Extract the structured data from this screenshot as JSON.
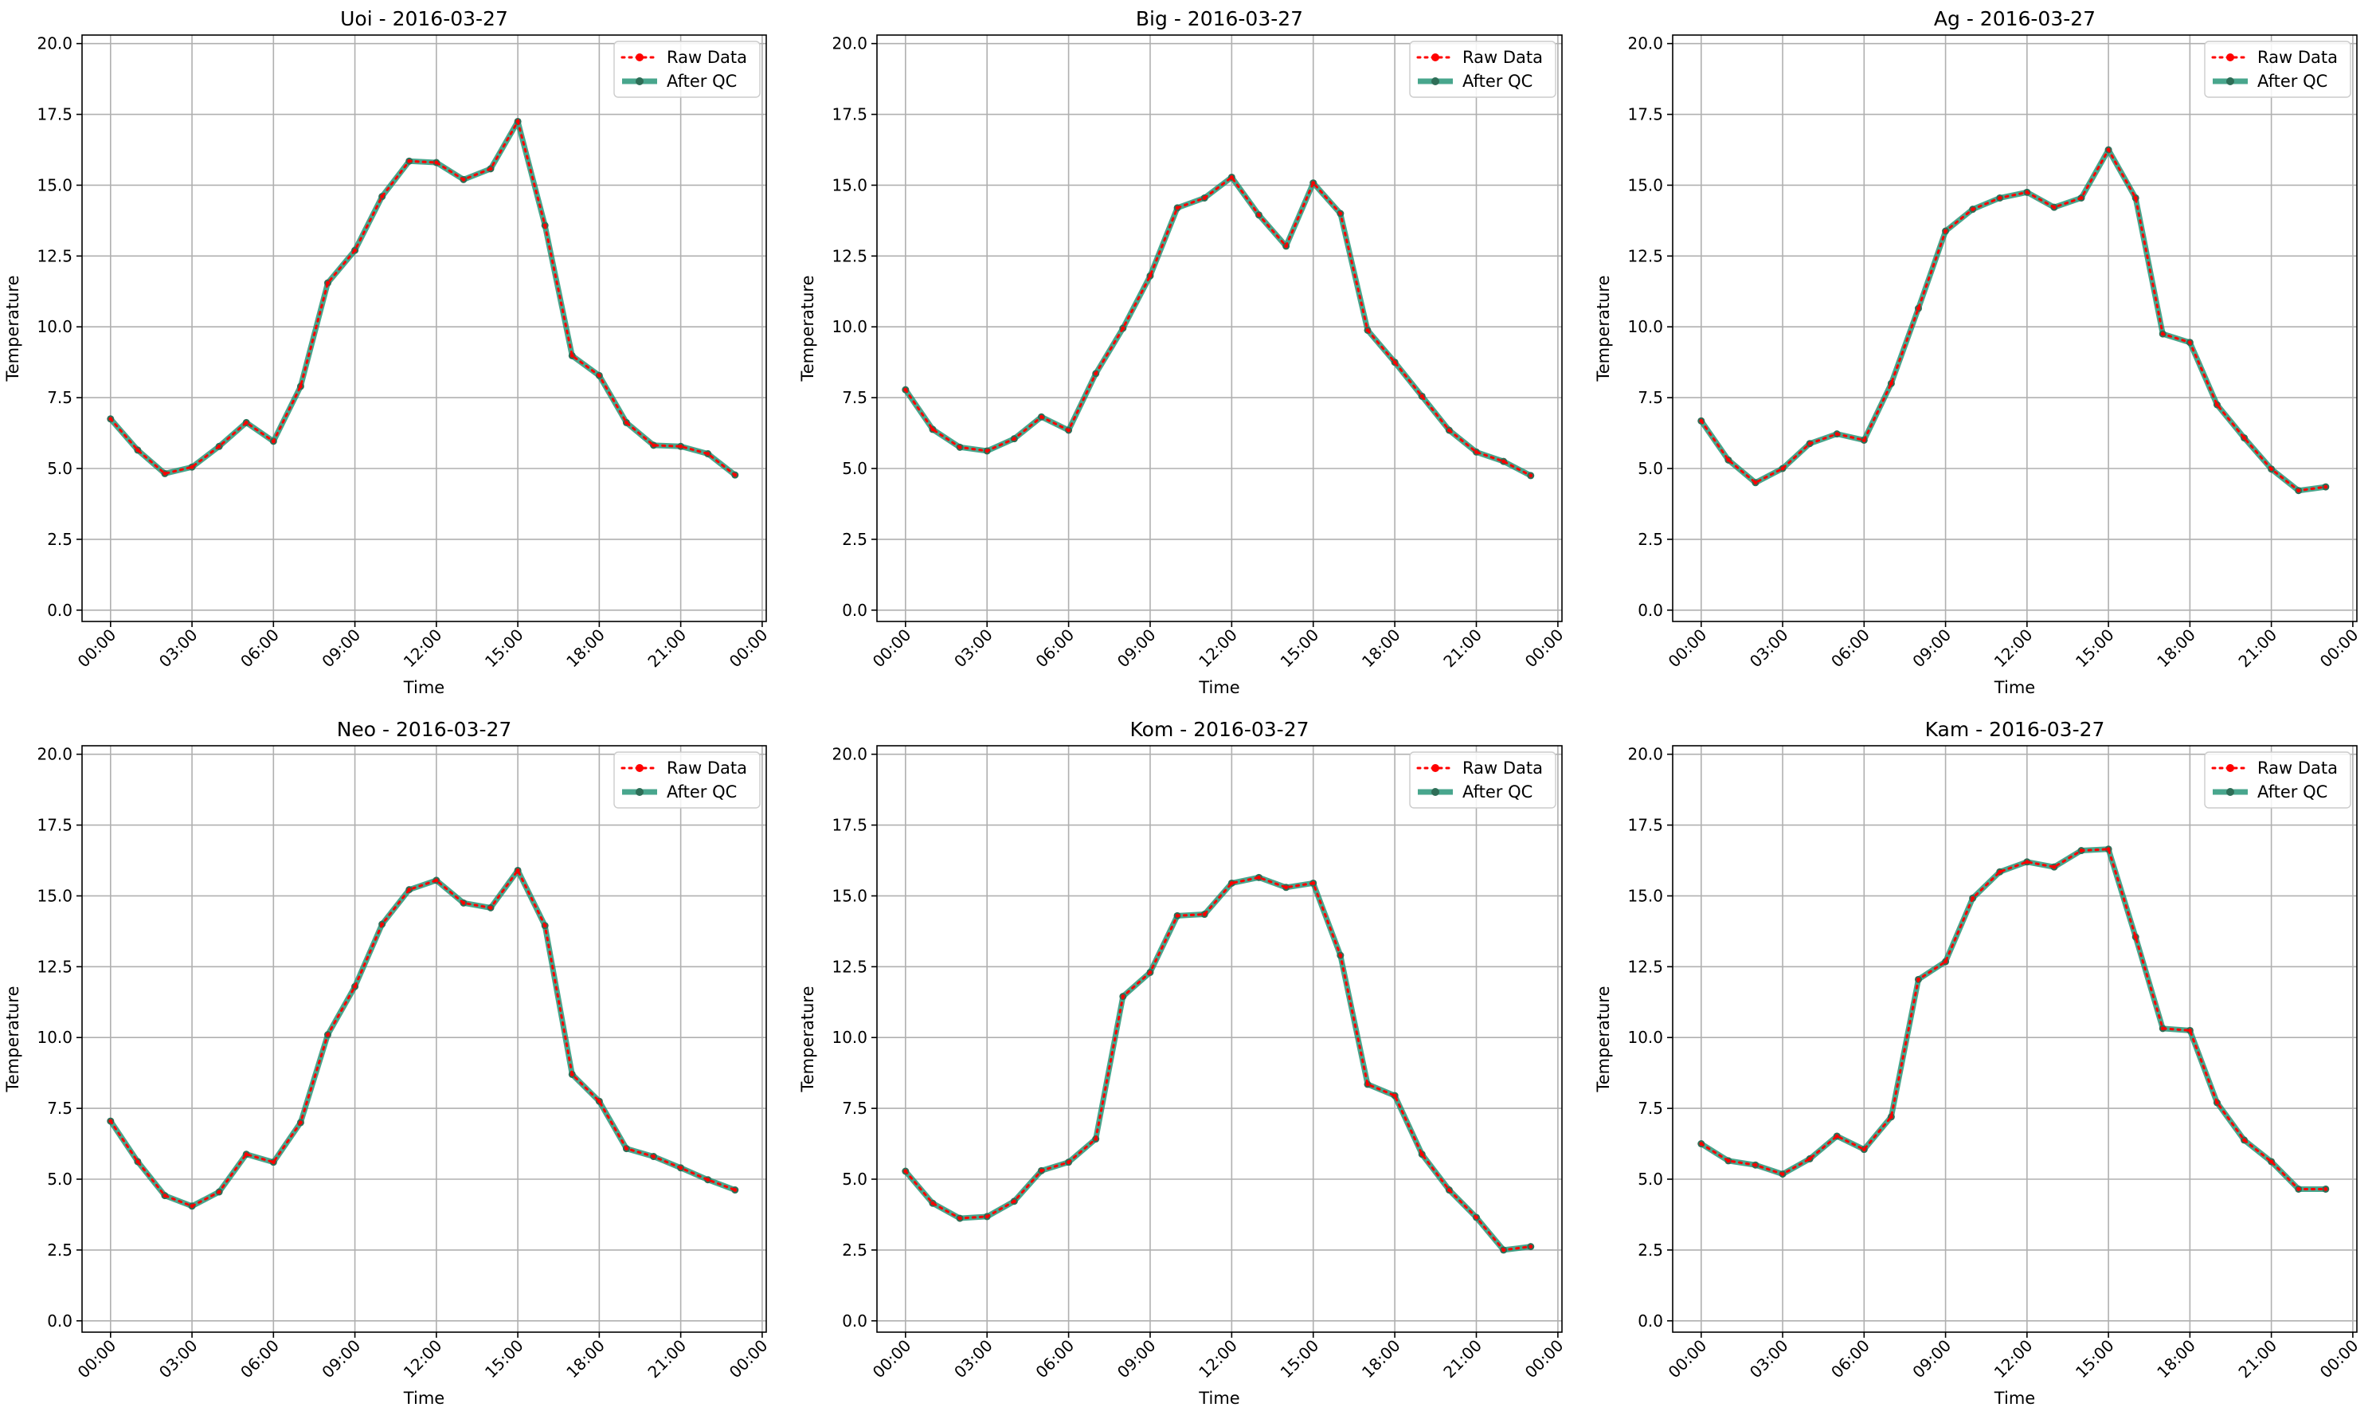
{
  "colors": {
    "raw": "#ff0000",
    "qc": "#1a9070",
    "grid": "#b0b0b0"
  },
  "legend": {
    "raw_label": "Raw Data",
    "qc_label": "After QC",
    "placement": "upper right"
  },
  "chart_data": [
    {
      "type": "line",
      "title": "Uoi - 2016-03-27",
      "xlabel": "Time",
      "ylabel": "Temperature",
      "ylim": [
        -0.4,
        20.3
      ],
      "yticks": [
        "0.0",
        "2.5",
        "5.0",
        "7.5",
        "10.0",
        "12.5",
        "15.0",
        "17.5",
        "20.0"
      ],
      "xticks": [
        "00:00",
        "03:00",
        "06:00",
        "09:00",
        "12:00",
        "15:00",
        "18:00",
        "21:00",
        "00:00"
      ],
      "x": [
        "00:00",
        "01:00",
        "02:00",
        "03:00",
        "04:00",
        "05:00",
        "06:00",
        "07:00",
        "08:00",
        "09:00",
        "10:00",
        "11:00",
        "12:00",
        "13:00",
        "14:00",
        "15:00",
        "16:00",
        "17:00",
        "18:00",
        "19:00",
        "20:00",
        "21:00",
        "22:00",
        "23:00"
      ],
      "series": [
        {
          "name": "Raw Data",
          "values": [
            6.75,
            5.65,
            4.82,
            5.05,
            5.78,
            6.62,
            5.96,
            7.9,
            11.55,
            12.7,
            14.6,
            15.85,
            15.8,
            15.2,
            15.58,
            17.25,
            13.58,
            8.98,
            8.28,
            6.62,
            5.82,
            5.78,
            5.52,
            4.77
          ]
        },
        {
          "name": "After QC",
          "values": [
            6.75,
            5.65,
            4.82,
            5.05,
            5.78,
            6.62,
            5.96,
            7.9,
            11.55,
            12.7,
            14.6,
            15.85,
            15.8,
            15.2,
            15.58,
            17.25,
            13.58,
            8.98,
            8.28,
            6.62,
            5.82,
            5.78,
            5.52,
            4.77
          ]
        }
      ]
    },
    {
      "type": "line",
      "title": "Big - 2016-03-27",
      "xlabel": "Time",
      "ylabel": "Temperature",
      "ylim": [
        -0.4,
        20.3
      ],
      "yticks": [
        "0.0",
        "2.5",
        "5.0",
        "7.5",
        "10.0",
        "12.5",
        "15.0",
        "17.5",
        "20.0"
      ],
      "xticks": [
        "00:00",
        "03:00",
        "06:00",
        "09:00",
        "12:00",
        "15:00",
        "18:00",
        "21:00",
        "00:00"
      ],
      "x": [
        "00:00",
        "01:00",
        "02:00",
        "03:00",
        "04:00",
        "05:00",
        "06:00",
        "07:00",
        "08:00",
        "09:00",
        "10:00",
        "11:00",
        "12:00",
        "13:00",
        "14:00",
        "15:00",
        "16:00",
        "17:00",
        "18:00",
        "19:00",
        "20:00",
        "21:00",
        "22:00",
        "23:00"
      ],
      "series": [
        {
          "name": "Raw Data",
          "values": [
            7.78,
            6.38,
            5.75,
            5.62,
            6.05,
            6.82,
            6.35,
            8.35,
            9.95,
            11.8,
            14.2,
            14.55,
            15.28,
            13.95,
            12.85,
            15.08,
            14.0,
            9.88,
            8.75,
            7.55,
            6.35,
            5.58,
            5.25,
            4.75
          ]
        },
        {
          "name": "After QC",
          "values": [
            7.78,
            6.38,
            5.75,
            5.62,
            6.05,
            6.82,
            6.35,
            8.35,
            9.95,
            11.8,
            14.2,
            14.55,
            15.28,
            13.95,
            12.85,
            15.08,
            14.0,
            9.88,
            8.75,
            7.55,
            6.35,
            5.58,
            5.25,
            4.75
          ]
        }
      ]
    },
    {
      "type": "line",
      "title": "Ag - 2016-03-27",
      "xlabel": "Time",
      "ylabel": "Temperature",
      "ylim": [
        -0.4,
        20.3
      ],
      "yticks": [
        "0.0",
        "2.5",
        "5.0",
        "7.5",
        "10.0",
        "12.5",
        "15.0",
        "17.5",
        "20.0"
      ],
      "xticks": [
        "00:00",
        "03:00",
        "06:00",
        "09:00",
        "12:00",
        "15:00",
        "18:00",
        "21:00",
        "00:00"
      ],
      "x": [
        "00:00",
        "01:00",
        "02:00",
        "03:00",
        "04:00",
        "05:00",
        "06:00",
        "07:00",
        "08:00",
        "09:00",
        "10:00",
        "11:00",
        "12:00",
        "13:00",
        "14:00",
        "15:00",
        "16:00",
        "17:00",
        "18:00",
        "19:00",
        "20:00",
        "21:00",
        "22:00",
        "23:00"
      ],
      "series": [
        {
          "name": "Raw Data",
          "values": [
            6.68,
            5.3,
            4.5,
            5.0,
            5.88,
            6.22,
            6.0,
            8.0,
            10.65,
            13.38,
            14.15,
            14.55,
            14.75,
            14.22,
            14.55,
            16.25,
            14.55,
            9.75,
            9.45,
            7.25,
            6.08,
            4.98,
            4.22,
            4.35
          ]
        },
        {
          "name": "After QC",
          "values": [
            6.68,
            5.3,
            4.5,
            5.0,
            5.88,
            6.22,
            6.0,
            8.0,
            10.65,
            13.38,
            14.15,
            14.55,
            14.75,
            14.22,
            14.55,
            16.25,
            14.55,
            9.75,
            9.45,
            7.25,
            6.08,
            4.98,
            4.22,
            4.35
          ]
        }
      ]
    },
    {
      "type": "line",
      "title": "Neo - 2016-03-27",
      "xlabel": "Time",
      "ylabel": "Temperature",
      "ylim": [
        -0.4,
        20.3
      ],
      "yticks": [
        "0.0",
        "2.5",
        "5.0",
        "7.5",
        "10.0",
        "12.5",
        "15.0",
        "17.5",
        "20.0"
      ],
      "xticks": [
        "00:00",
        "03:00",
        "06:00",
        "09:00",
        "12:00",
        "15:00",
        "18:00",
        "21:00",
        "00:00"
      ],
      "x": [
        "00:00",
        "01:00",
        "02:00",
        "03:00",
        "04:00",
        "05:00",
        "06:00",
        "07:00",
        "08:00",
        "09:00",
        "10:00",
        "11:00",
        "12:00",
        "13:00",
        "14:00",
        "15:00",
        "16:00",
        "17:00",
        "18:00",
        "19:00",
        "20:00",
        "21:00",
        "22:00",
        "23:00"
      ],
      "series": [
        {
          "name": "Raw Data",
          "values": [
            7.05,
            5.62,
            4.42,
            4.05,
            4.55,
            5.88,
            5.6,
            7.0,
            10.1,
            11.8,
            14.0,
            15.22,
            15.55,
            14.75,
            14.58,
            15.9,
            13.95,
            8.7,
            7.75,
            6.08,
            5.8,
            5.4,
            4.98,
            4.62
          ]
        },
        {
          "name": "After QC",
          "values": [
            7.05,
            5.62,
            4.42,
            4.05,
            4.55,
            5.88,
            5.6,
            7.0,
            10.1,
            11.8,
            14.0,
            15.22,
            15.55,
            14.75,
            14.58,
            15.9,
            13.95,
            8.7,
            7.75,
            6.08,
            5.8,
            5.4,
            4.98,
            4.62
          ]
        }
      ]
    },
    {
      "type": "line",
      "title": "Kom - 2016-03-27",
      "xlabel": "Time",
      "ylabel": "Temperature",
      "ylim": [
        -0.4,
        20.3
      ],
      "yticks": [
        "0.0",
        "2.5",
        "5.0",
        "7.5",
        "10.0",
        "12.5",
        "15.0",
        "17.5",
        "20.0"
      ],
      "xticks": [
        "00:00",
        "03:00",
        "06:00",
        "09:00",
        "12:00",
        "15:00",
        "18:00",
        "21:00",
        "00:00"
      ],
      "x": [
        "00:00",
        "01:00",
        "02:00",
        "03:00",
        "04:00",
        "05:00",
        "06:00",
        "07:00",
        "08:00",
        "09:00",
        "10:00",
        "11:00",
        "12:00",
        "13:00",
        "14:00",
        "15:00",
        "16:00",
        "17:00",
        "18:00",
        "19:00",
        "20:00",
        "21:00",
        "22:00",
        "23:00"
      ],
      "series": [
        {
          "name": "Raw Data",
          "values": [
            5.28,
            4.15,
            3.62,
            3.68,
            4.22,
            5.3,
            5.6,
            6.42,
            11.45,
            12.3,
            14.3,
            14.35,
            15.45,
            15.65,
            15.3,
            15.45,
            12.9,
            8.35,
            7.95,
            5.88,
            4.62,
            3.65,
            2.5,
            2.62
          ]
        },
        {
          "name": "After QC",
          "values": [
            5.28,
            4.15,
            3.62,
            3.68,
            4.22,
            5.3,
            5.6,
            6.42,
            11.45,
            12.3,
            14.3,
            14.35,
            15.45,
            15.65,
            15.3,
            15.45,
            12.9,
            8.35,
            7.95,
            5.88,
            4.62,
            3.65,
            2.5,
            2.62
          ]
        }
      ]
    },
    {
      "type": "line",
      "title": "Kam - 2016-03-27",
      "xlabel": "Time",
      "ylabel": "Temperature",
      "ylim": [
        -0.4,
        20.3
      ],
      "yticks": [
        "0.0",
        "2.5",
        "5.0",
        "7.5",
        "10.0",
        "12.5",
        "15.0",
        "17.5",
        "20.0"
      ],
      "xticks": [
        "00:00",
        "03:00",
        "06:00",
        "09:00",
        "12:00",
        "15:00",
        "18:00",
        "21:00",
        "00:00"
      ],
      "x": [
        "00:00",
        "01:00",
        "02:00",
        "03:00",
        "04:00",
        "05:00",
        "06:00",
        "07:00",
        "08:00",
        "09:00",
        "10:00",
        "11:00",
        "12:00",
        "13:00",
        "14:00",
        "15:00",
        "16:00",
        "17:00",
        "18:00",
        "19:00",
        "20:00",
        "21:00",
        "22:00",
        "23:00"
      ],
      "series": [
        {
          "name": "Raw Data",
          "values": [
            6.25,
            5.65,
            5.5,
            5.18,
            5.72,
            6.52,
            6.05,
            7.2,
            12.05,
            12.68,
            14.92,
            15.85,
            16.2,
            16.02,
            16.6,
            16.65,
            13.55,
            10.32,
            10.25,
            7.7,
            6.38,
            5.62,
            4.65,
            4.65
          ]
        },
        {
          "name": "After QC",
          "values": [
            6.25,
            5.65,
            5.5,
            5.18,
            5.72,
            6.52,
            6.05,
            7.2,
            12.05,
            12.68,
            14.92,
            15.85,
            16.2,
            16.02,
            16.6,
            16.65,
            13.55,
            10.32,
            10.25,
            7.7,
            6.38,
            5.62,
            4.65,
            4.65
          ]
        }
      ]
    }
  ]
}
